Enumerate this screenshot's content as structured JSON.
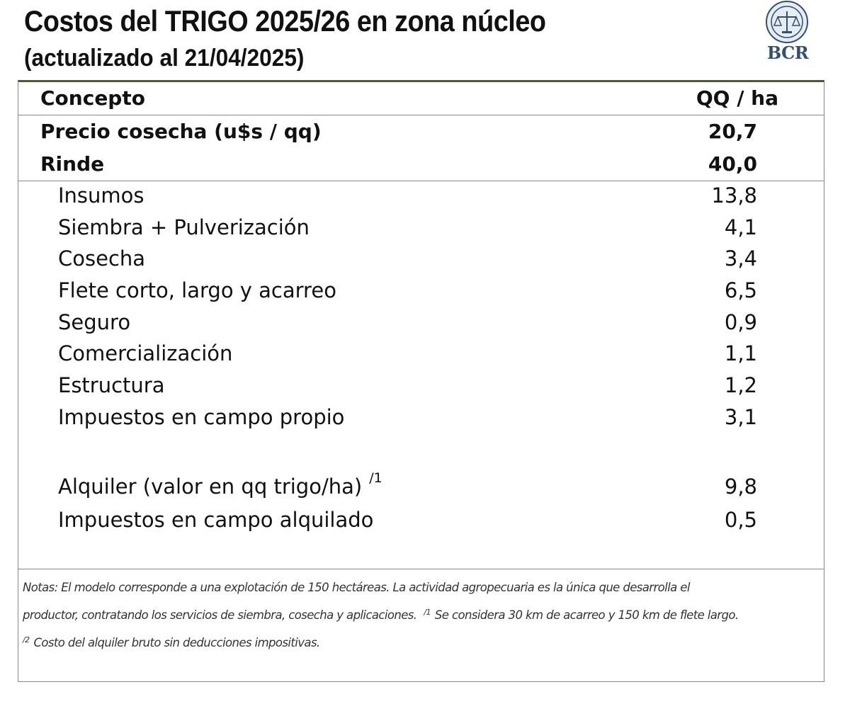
{
  "header": {
    "title": "Costos del TRIGO 2025/26 en zona núcleo",
    "subtitle": "(actualizado al 21/04/2025)",
    "logo_text": "BCR"
  },
  "table": {
    "header": {
      "concept": "Concepto",
      "unit": "QQ / ha"
    },
    "summary": [
      {
        "label": "Precio cosecha (u$s / qq)",
        "value": "20,7"
      },
      {
        "label": "Rinde",
        "value": "40,0"
      }
    ],
    "costs": [
      {
        "label": "Insumos",
        "value": "13,8"
      },
      {
        "label": "Siembra + Pulverización",
        "value": "4,1"
      },
      {
        "label": "Cosecha",
        "value": "3,4"
      },
      {
        "label": "Flete corto, largo y acarreo",
        "value": "6,5"
      },
      {
        "label": "Seguro",
        "value": "0,9"
      },
      {
        "label": "Comercialización",
        "value": "1,1"
      },
      {
        "label": "Estructura",
        "value": "1,2"
      },
      {
        "label": "Impuestos en campo propio",
        "value": "3,1"
      }
    ],
    "rent": [
      {
        "label": "Alquiler (valor en qq trigo/ha)",
        "footnote_ref": "/1",
        "value": "9,8"
      },
      {
        "label": "Impuestos en campo alquilado",
        "value": "0,5"
      }
    ]
  },
  "notes": {
    "line1": "Notas: El modelo corresponde a una explotación de 150 hectáreas. La actividad agropecuaria es la única que desarrolla el",
    "line2a": "productor, contratando los servicios de siembra, cosecha y aplicaciones.",
    "ref1": "/1",
    "line2b": "Se considera 30 km de acarreo y 150 km de flete largo.",
    "ref2": "/2",
    "line3": "Costo del alquiler bruto sin deducciones impositivas."
  },
  "colors": {
    "top_rule": "#4b5a35",
    "border": "#8a8a8a",
    "logo": "#34506f"
  }
}
